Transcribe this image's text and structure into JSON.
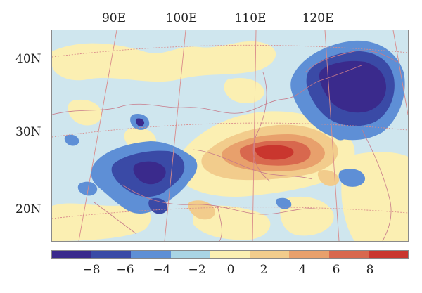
{
  "longitude_labels": [
    "90E",
    "100E",
    "110E",
    "120E"
  ],
  "latitude_labels": [
    "40N",
    "30N",
    "20N"
  ],
  "colorbar": {
    "colors": [
      "#3a2a8c",
      "#3a4aa6",
      "#5e8fd6",
      "#a9d4e4",
      "#fbefb2",
      "#f2cc8c",
      "#e8a06c",
      "#d8684e",
      "#c9362e"
    ],
    "tick_labels": [
      "−8",
      "−6",
      "−4",
      "−2",
      "0",
      "2",
      "4",
      "6",
      "8"
    ]
  }
}
